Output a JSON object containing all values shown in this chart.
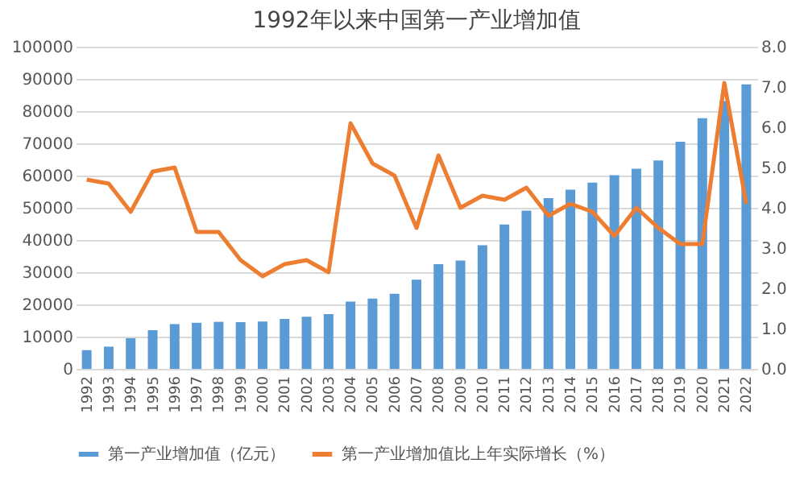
{
  "chart_data": {
    "type": "bar",
    "title": "1992年以来中国第一产业增加值",
    "categories": [
      "1992",
      "1993",
      "1994",
      "1995",
      "1996",
      "1997",
      "1998",
      "1999",
      "2000",
      "2001",
      "2002",
      "2003",
      "2004",
      "2005",
      "2006",
      "2007",
      "2008",
      "2009",
      "2010",
      "2011",
      "2012",
      "2013",
      "2014",
      "2015",
      "2016",
      "2017",
      "2018",
      "2019",
      "2020",
      "2021",
      "2022"
    ],
    "series": [
      {
        "name": "第一产业增加值（亿元）",
        "color": "#5b9bd5",
        "values": [
          5800,
          6900,
          9500,
          12000,
          13900,
          14300,
          14600,
          14500,
          14700,
          15500,
          16200,
          17000,
          20900,
          21800,
          23300,
          27700,
          32500,
          33600,
          38400,
          44800,
          49100,
          53000,
          55600,
          57800,
          60100,
          62100,
          64700,
          70500,
          77800,
          83100,
          88300
        ]
      },
      {
        "name": "第一产业增加值比上年实际增长（%）",
        "type": "line",
        "axis": "y2",
        "color": "#ed7d31",
        "values": [
          4.7,
          4.6,
          3.9,
          4.9,
          5.0,
          3.4,
          3.4,
          2.7,
          2.3,
          2.6,
          2.7,
          2.4,
          6.1,
          5.1,
          4.8,
          3.5,
          5.3,
          4.0,
          4.3,
          4.2,
          4.5,
          3.8,
          4.1,
          3.9,
          3.3,
          4.0,
          3.5,
          3.1,
          3.1,
          7.1,
          4.1
        ]
      }
    ],
    "ylim": [
      0,
      100000
    ],
    "yticks": [
      0,
      10000,
      20000,
      30000,
      40000,
      50000,
      60000,
      70000,
      80000,
      90000,
      100000
    ],
    "y2lim": [
      0,
      8
    ],
    "y2ticks": [
      {
        "value": 0,
        "label": "0.0"
      },
      {
        "value": 1,
        "label": "1.0"
      },
      {
        "value": 2,
        "label": "2.0"
      },
      {
        "value": 3,
        "label": "3.0"
      },
      {
        "value": 4,
        "label": "4.0"
      },
      {
        "value": 5,
        "label": "5.0"
      },
      {
        "value": 6,
        "label": "6.0"
      },
      {
        "value": 7,
        "label": "7.0"
      },
      {
        "value": 8,
        "label": "8.0"
      }
    ],
    "grid": "y",
    "legend": "bottom"
  }
}
